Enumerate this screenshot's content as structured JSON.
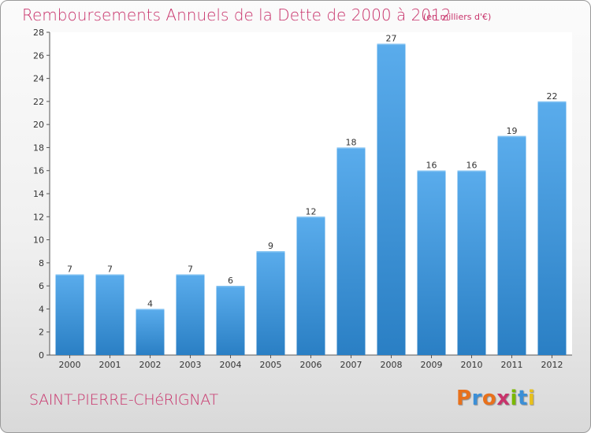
{
  "header": {
    "title": "Remboursements Annuels de la Dette de 2000 à 2012",
    "subtitle": "(en milliers d'€)"
  },
  "footer": {
    "commune": "SAINT-PIERRE-CHéRIGNAT",
    "logo": "Proxiti"
  },
  "colors": {
    "title": "#c8336b",
    "bar_light": "#5aacec",
    "bar_dark": "#2a7fc4"
  },
  "chart_data": {
    "type": "bar",
    "title": "Remboursements Annuels de la Dette de 2000 à 2012",
    "subtitle": "(en milliers d'€)",
    "xlabel": "",
    "ylabel": "",
    "categories": [
      "2000",
      "2001",
      "2002",
      "2003",
      "2004",
      "2005",
      "2006",
      "2007",
      "2008",
      "2009",
      "2010",
      "2011",
      "2012"
    ],
    "values": [
      7,
      7,
      4,
      7,
      6,
      9,
      12,
      18,
      27,
      16,
      16,
      19,
      22
    ],
    "ylim": [
      0,
      28
    ],
    "yticks": [
      0,
      2,
      4,
      6,
      8,
      10,
      12,
      14,
      16,
      18,
      20,
      22,
      24,
      26,
      28
    ],
    "grid": false,
    "legend": "none"
  }
}
